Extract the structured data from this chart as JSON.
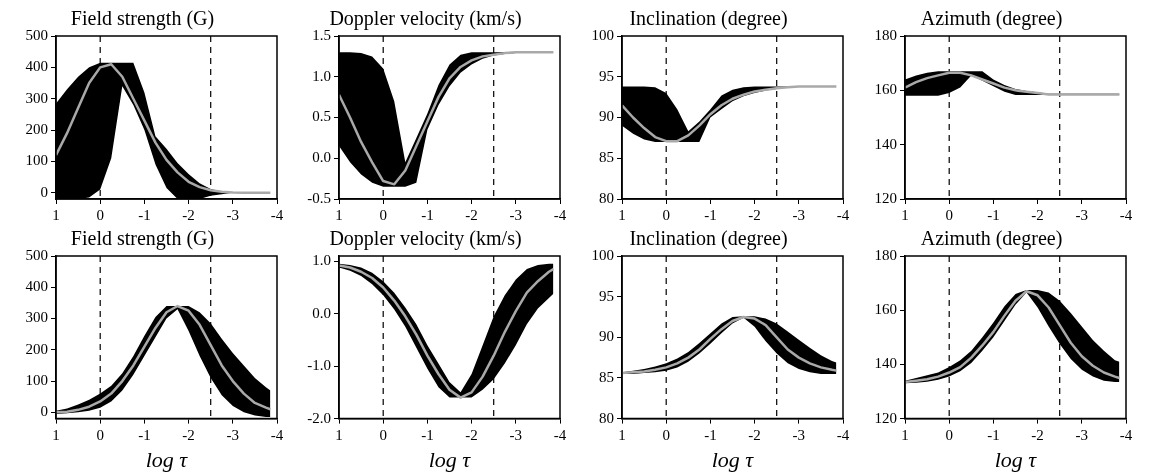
{
  "chart_data": [
    {
      "type": "line",
      "title": "Field strength (G)",
      "x": [
        1,
        0.75,
        0.5,
        0.25,
        0,
        -0.25,
        -0.5,
        -0.75,
        -1,
        -1.25,
        -1.5,
        -1.75,
        -2,
        -2.25,
        -2.5,
        -2.75,
        -3,
        -3.25,
        -3.5,
        -3.75,
        -3.85
      ],
      "xlim": [
        1,
        -4
      ],
      "xticks": [
        1,
        0,
        -1,
        -2,
        -3,
        -4
      ],
      "ylim": [
        -20,
        500
      ],
      "yticks": [
        0,
        100,
        200,
        300,
        400,
        500
      ],
      "ref_lines": [
        {
          "axis": "x",
          "value": 0,
          "line_style": "dashed",
          "color": "#000000"
        },
        {
          "axis": "x",
          "value": -2.5,
          "line_style": "dashed",
          "color": "#000000"
        }
      ],
      "series": [
        {
          "color": "#a9a9a9",
          "values": [
            120,
            190,
            270,
            350,
            400,
            410,
            370,
            300,
            230,
            160,
            105,
            65,
            35,
            18,
            8,
            3,
            1,
            0,
            0,
            0,
            0
          ],
          "upper": [
            285,
            330,
            370,
            400,
            415,
            415,
            415,
            415,
            320,
            180,
            140,
            95,
            60,
            30,
            12,
            4,
            1,
            0,
            0,
            0,
            0
          ],
          "lower": [
            -20,
            -20,
            -20,
            -15,
            10,
            110,
            340,
            280,
            200,
            90,
            15,
            -20,
            -20,
            -20,
            -10,
            -5,
            0,
            0,
            0,
            0,
            0
          ]
        }
      ]
    },
    {
      "type": "line",
      "title": "Doppler velocity (km/s)",
      "x": [
        1,
        0.75,
        0.5,
        0.25,
        0,
        -0.25,
        -0.5,
        -0.75,
        -1,
        -1.25,
        -1.5,
        -1.75,
        -2,
        -2.25,
        -2.5,
        -2.75,
        -3,
        -3.25,
        -3.5,
        -3.75,
        -3.85
      ],
      "xlim": [
        1,
        -4
      ],
      "xticks": [
        1,
        0,
        -1,
        -2,
        -3,
        -4
      ],
      "ylim": [
        -0.5,
        1.5
      ],
      "yticks": [
        -0.5,
        {
          "value": 0,
          "label": "0.0"
        },
        0.5,
        {
          "value": 1,
          "label": "1.0"
        },
        1.5
      ],
      "ref_lines": [
        {
          "axis": "x",
          "value": 0,
          "line_style": "dashed",
          "color": "#000000"
        },
        {
          "axis": "x",
          "value": -2.5,
          "line_style": "dashed",
          "color": "#000000"
        }
      ],
      "series": [
        {
          "color": "#a9a9a9",
          "values": [
            0.78,
            0.5,
            0.2,
            -0.05,
            -0.28,
            -0.32,
            -0.15,
            0.15,
            0.45,
            0.75,
            0.98,
            1.12,
            1.2,
            1.25,
            1.27,
            1.29,
            1.3,
            1.3,
            1.3,
            1.3,
            1.3
          ],
          "upper": [
            1.3,
            1.3,
            1.29,
            1.25,
            1.1,
            0.7,
            -0.05,
            0.25,
            0.55,
            0.9,
            1.15,
            1.27,
            1.3,
            1.3,
            1.3,
            1.3,
            1.3,
            1.3,
            1.3,
            1.3,
            1.3
          ],
          "lower": [
            0.15,
            -0.05,
            -0.2,
            -0.3,
            -0.35,
            -0.35,
            -0.35,
            -0.3,
            0.35,
            0.65,
            0.88,
            1.05,
            1.15,
            1.22,
            1.26,
            1.28,
            1.29,
            1.29,
            1.29,
            1.29,
            1.29
          ]
        }
      ]
    },
    {
      "type": "line",
      "title": "Inclination (degree)",
      "x": [
        1,
        0.75,
        0.5,
        0.25,
        0,
        -0.25,
        -0.5,
        -0.75,
        -1,
        -1.25,
        -1.5,
        -1.75,
        -2,
        -2.25,
        -2.5,
        -2.75,
        -3,
        -3.25,
        -3.5,
        -3.75,
        -3.85
      ],
      "xlim": [
        1,
        -4
      ],
      "xticks": [
        1,
        0,
        -1,
        -2,
        -3,
        -4
      ],
      "ylim": [
        80,
        100
      ],
      "yticks": [
        80,
        85,
        90,
        95,
        100
      ],
      "ref_lines": [
        {
          "axis": "x",
          "value": 0,
          "line_style": "dashed",
          "color": "#000000"
        },
        {
          "axis": "x",
          "value": -2.5,
          "line_style": "dashed",
          "color": "#000000"
        }
      ],
      "series": [
        {
          "color": "#a9a9a9",
          "values": [
            91.5,
            90,
            88.7,
            87.6,
            87.1,
            87.1,
            87.8,
            89,
            90.4,
            91.5,
            92.3,
            92.8,
            93.2,
            93.4,
            93.6,
            93.7,
            93.8,
            93.8,
            93.8,
            93.8,
            93.8
          ],
          "upper": [
            93.8,
            93.8,
            93.8,
            93.7,
            93,
            91,
            88.3,
            89.5,
            91,
            92.7,
            93.4,
            93.7,
            93.8,
            93.8,
            93.8,
            93.8,
            93.8,
            93.8,
            93.8,
            93.8,
            93.8
          ],
          "lower": [
            89,
            88,
            87.3,
            87,
            87,
            87,
            87,
            87,
            90,
            91,
            92,
            92.6,
            93,
            93.3,
            93.5,
            93.7,
            93.8,
            93.8,
            93.8,
            93.8,
            93.8
          ]
        }
      ]
    },
    {
      "type": "line",
      "title": "Azimuth (degree)",
      "x": [
        1,
        0.75,
        0.5,
        0.25,
        0,
        -0.25,
        -0.5,
        -0.75,
        -1,
        -1.25,
        -1.5,
        -1.75,
        -2,
        -2.25,
        -2.5,
        -2.75,
        -3,
        -3.25,
        -3.5,
        -3.75,
        -3.85
      ],
      "xlim": [
        1,
        -4
      ],
      "xticks": [
        1,
        0,
        -1,
        -2,
        -3,
        -4
      ],
      "ylim": [
        120,
        180
      ],
      "yticks": [
        120,
        140,
        160,
        180
      ],
      "ref_lines": [
        {
          "axis": "x",
          "value": 0,
          "line_style": "dashed",
          "color": "#000000"
        },
        {
          "axis": "x",
          "value": -2.5,
          "line_style": "dashed",
          "color": "#000000"
        }
      ],
      "series": [
        {
          "color": "#a9a9a9",
          "values": [
            161,
            163,
            164.5,
            165.5,
            166.5,
            166.5,
            165.5,
            164,
            162.5,
            161,
            160,
            159.5,
            159,
            158.5,
            158.5,
            158.5,
            158.5,
            158.5,
            158.5,
            158.5,
            158.5
          ],
          "upper": [
            164,
            165.5,
            166.5,
            167,
            167,
            167,
            167,
            167,
            164,
            162,
            160.5,
            159.8,
            159.3,
            158.7,
            158.7,
            158.7,
            158.7,
            158.7,
            158.7,
            158.7,
            158.7
          ],
          "lower": [
            158,
            158,
            158,
            158,
            159,
            161,
            165.5,
            163.5,
            161.5,
            159.5,
            158.3,
            158.3,
            158.3,
            158.3,
            158.3,
            158.3,
            158.3,
            158.3,
            158.3,
            158.3,
            158.3
          ]
        }
      ]
    },
    {
      "type": "line",
      "title": "Field strength (G)",
      "xlabel": "log τ",
      "x": [
        1,
        0.75,
        0.5,
        0.25,
        0,
        -0.25,
        -0.5,
        -0.75,
        -1,
        -1.25,
        -1.5,
        -1.75,
        -2,
        -2.25,
        -2.5,
        -2.75,
        -3,
        -3.25,
        -3.5,
        -3.75,
        -3.85
      ],
      "xlim": [
        1,
        -4
      ],
      "xticks": [
        1,
        0,
        -1,
        -2,
        -3,
        -4
      ],
      "ylim": [
        -20,
        500
      ],
      "yticks": [
        0,
        100,
        200,
        300,
        400,
        500
      ],
      "ref_lines": [
        {
          "axis": "x",
          "value": 0,
          "line_style": "dashed",
          "color": "#000000"
        },
        {
          "axis": "x",
          "value": -2.5,
          "line_style": "dashed",
          "color": "#000000"
        }
      ],
      "series": [
        {
          "color": "#a9a9a9",
          "values": [
            0,
            2,
            8,
            18,
            35,
            60,
            100,
            150,
            210,
            270,
            320,
            340,
            325,
            280,
            215,
            150,
            100,
            60,
            30,
            15,
            10
          ],
          "upper": [
            5,
            12,
            25,
            40,
            60,
            85,
            125,
            180,
            245,
            305,
            340,
            340,
            340,
            320,
            285,
            235,
            190,
            150,
            110,
            80,
            70
          ],
          "lower": [
            -5,
            -3,
            0,
            5,
            15,
            35,
            70,
            120,
            180,
            240,
            300,
            330,
            260,
            180,
            110,
            55,
            20,
            0,
            -10,
            -15,
            -15
          ]
        }
      ]
    },
    {
      "type": "line",
      "title": "Doppler velocity (km/s)",
      "xlabel": "log τ",
      "x": [
        1,
        0.75,
        0.5,
        0.25,
        0,
        -0.25,
        -0.5,
        -0.75,
        -1,
        -1.25,
        -1.5,
        -1.75,
        -2,
        -2.25,
        -2.5,
        -2.75,
        -3,
        -3.25,
        -3.5,
        -3.75,
        -3.85
      ],
      "xlim": [
        1,
        -4
      ],
      "xticks": [
        1,
        0,
        -1,
        -2,
        -3,
        -4
      ],
      "ylim": [
        -2,
        1.1
      ],
      "yticks": [
        {
          "value": -2,
          "label": "-2.0"
        },
        {
          "value": -1,
          "label": "-1.0"
        },
        {
          "value": 0,
          "label": "0.0"
        },
        {
          "value": 1,
          "label": "1.0"
        }
      ],
      "ref_lines": [
        {
          "axis": "x",
          "value": 0,
          "line_style": "dashed",
          "color": "#000000"
        },
        {
          "axis": "x",
          "value": -2.5,
          "line_style": "dashed",
          "color": "#000000"
        }
      ],
      "series": [
        {
          "color": "#a9a9a9",
          "values": [
            0.92,
            0.88,
            0.8,
            0.68,
            0.5,
            0.25,
            -0.05,
            -0.4,
            -0.8,
            -1.15,
            -1.45,
            -1.6,
            -1.5,
            -1.2,
            -0.8,
            -0.35,
            0.05,
            0.4,
            0.62,
            0.8,
            0.85
          ],
          "upper": [
            0.95,
            0.93,
            0.88,
            0.78,
            0.62,
            0.4,
            0.12,
            -0.2,
            -0.6,
            -0.95,
            -1.3,
            -1.5,
            -1.15,
            -0.6,
            -0.05,
            0.35,
            0.65,
            0.85,
            0.93,
            0.95,
            0.95
          ],
          "lower": [
            0.88,
            0.82,
            0.72,
            0.56,
            0.35,
            0.08,
            -0.25,
            -0.65,
            -1.05,
            -1.4,
            -1.6,
            -1.6,
            -1.6,
            -1.45,
            -1.25,
            -0.95,
            -0.6,
            -0.2,
            0.1,
            0.3,
            0.38
          ]
        }
      ]
    },
    {
      "type": "line",
      "title": "Inclination (degree)",
      "xlabel": "log τ",
      "x": [
        1,
        0.75,
        0.5,
        0.25,
        0,
        -0.25,
        -0.5,
        -0.75,
        -1,
        -1.25,
        -1.5,
        -1.75,
        -2,
        -2.25,
        -2.5,
        -2.75,
        -3,
        -3.25,
        -3.5,
        -3.75,
        -3.85
      ],
      "xlim": [
        1,
        -4
      ],
      "xticks": [
        1,
        0,
        -1,
        -2,
        -3,
        -4
      ],
      "ylim": [
        80,
        100
      ],
      "yticks": [
        80,
        85,
        90,
        95,
        100
      ],
      "ref_lines": [
        {
          "axis": "x",
          "value": 0,
          "line_style": "dashed",
          "color": "#000000"
        },
        {
          "axis": "x",
          "value": -2.5,
          "line_style": "dashed",
          "color": "#000000"
        }
      ],
      "series": [
        {
          "color": "#a9a9a9",
          "values": [
            85.6,
            85.7,
            85.8,
            86,
            86.3,
            86.8,
            87.5,
            88.5,
            89.8,
            91,
            92,
            92.5,
            92.3,
            91.5,
            90,
            88.5,
            87.5,
            86.8,
            86.3,
            86,
            85.9
          ],
          "upper": [
            85.7,
            85.9,
            86.1,
            86.4,
            86.8,
            87.4,
            88.2,
            89.3,
            90.5,
            91.7,
            92.5,
            92.6,
            92.6,
            92.3,
            91.7,
            90.7,
            89.7,
            88.7,
            87.8,
            87.1,
            86.9
          ],
          "lower": [
            85.5,
            85.5,
            85.6,
            85.7,
            85.9,
            86.3,
            87,
            88,
            89.2,
            90.5,
            91.7,
            92.4,
            91.3,
            89.5,
            88,
            86.8,
            86.1,
            85.7,
            85.5,
            85.5,
            85.5
          ]
        }
      ]
    },
    {
      "type": "line",
      "title": "Azimuth (degree)",
      "xlabel": "log τ",
      "x": [
        1,
        0.75,
        0.5,
        0.25,
        0,
        -0.25,
        -0.5,
        -0.75,
        -1,
        -1.25,
        -1.5,
        -1.75,
        -2,
        -2.25,
        -2.5,
        -2.75,
        -3,
        -3.25,
        -3.5,
        -3.75,
        -3.85
      ],
      "xlim": [
        1,
        -4
      ],
      "xticks": [
        1,
        0,
        -1,
        -2,
        -3,
        -4
      ],
      "ylim": [
        120,
        180
      ],
      "yticks": [
        120,
        140,
        160,
        180
      ],
      "ref_lines": [
        {
          "axis": "x",
          "value": 0,
          "line_style": "dashed",
          "color": "#000000"
        },
        {
          "axis": "x",
          "value": -2.5,
          "line_style": "dashed",
          "color": "#000000"
        }
      ],
      "series": [
        {
          "color": "#a9a9a9",
          "values": [
            133.5,
            134,
            134.5,
            135.5,
            137,
            139,
            142.5,
            147,
            152,
            158,
            163.5,
            167,
            165.5,
            161,
            154.5,
            148,
            143,
            139.5,
            137,
            135.5,
            135
          ],
          "upper": [
            134,
            135,
            136,
            137,
            139,
            141.5,
            145,
            150,
            155.5,
            161.5,
            166,
            167.5,
            167.5,
            166.5,
            163.5,
            159,
            154,
            149,
            145,
            141.5,
            141
          ],
          "lower": [
            133,
            133.2,
            133.6,
            134.3,
            135.5,
            137.5,
            140.5,
            145,
            150,
            156,
            162,
            166.5,
            161,
            154,
            147.5,
            142,
            138,
            135.5,
            134,
            133.5,
            133.5
          ]
        }
      ]
    }
  ]
}
